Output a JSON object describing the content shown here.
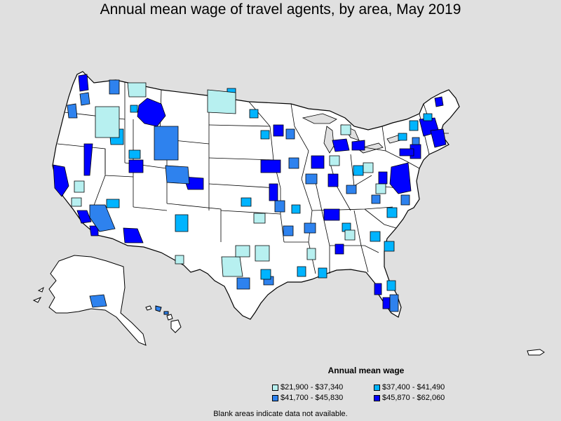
{
  "title": "Annual mean wage of travel agents, by area, May 2019",
  "legend": {
    "title": "Annual mean wage",
    "items": [
      {
        "label": "$21,900 - $37,340",
        "color": "#b7f0f0"
      },
      {
        "label": "$37,400 - $41,490",
        "color": "#00b4ff"
      },
      {
        "label": "$41,700 - $45,830",
        "color": "#2e82ee"
      },
      {
        "label": "$45,870 - $62,060",
        "color": "#0000ff"
      }
    ]
  },
  "footnote": "Blank areas indicate data not available.",
  "colors": {
    "background": "#e0e0e0",
    "land": "#ffffff",
    "border": "#000000"
  }
}
